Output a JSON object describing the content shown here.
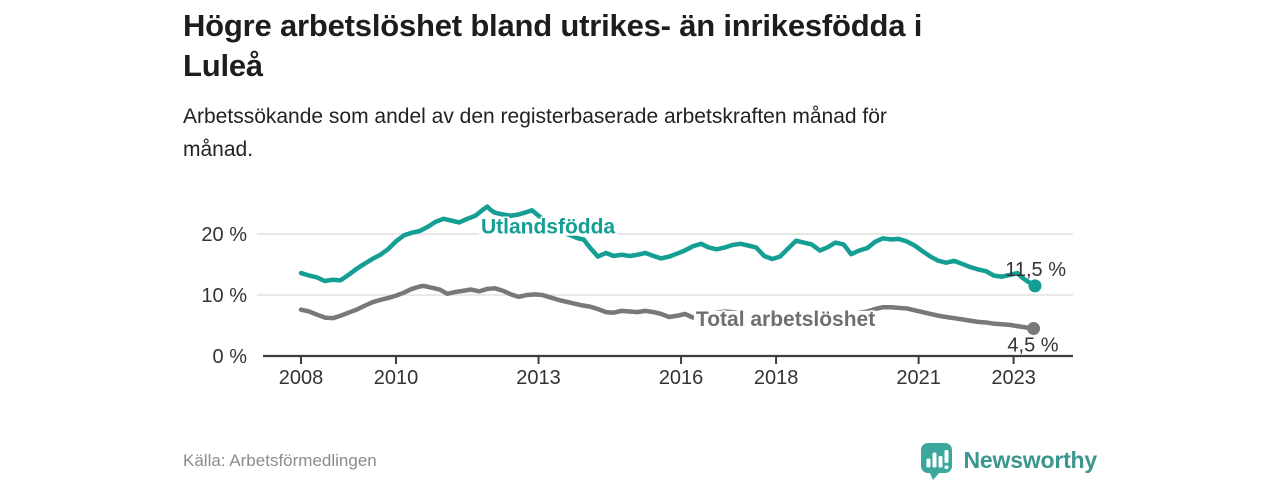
{
  "header": {
    "title_lines": [
      "Högre arbetslöshet bland utrikes- än inrikesfödda i",
      "Luleå"
    ],
    "subtitle_lines": [
      "Arbetssökande som andel av den registerbaserade arbetskraften månad för",
      "månad."
    ]
  },
  "footer": {
    "source": "Källa: Arbetsförmedlingen",
    "brand": "Newsworthy"
  },
  "colors": {
    "accent_teal": "#149E94",
    "line_gray": "#787878",
    "label_gray": "#6f6f6f",
    "grid": "#dcdcdc",
    "axis": "#3d3d3d",
    "axis_text": "#333333",
    "end_label_text": "#333333",
    "logo_teal": "#3BA79D",
    "logo_text": "#3A968E"
  },
  "chart_data": {
    "type": "line",
    "unit": "%",
    "xlim": [
      2007.2,
      2024.25
    ],
    "ylim": [
      0,
      25.5
    ],
    "grid": "horizontal",
    "y_ticks": [
      {
        "value": 0,
        "label": "0 %"
      },
      {
        "value": 10,
        "label": "10 %"
      },
      {
        "value": 20,
        "label": "20 %"
      }
    ],
    "x_ticks": [
      {
        "value": 2008,
        "label": "2008"
      },
      {
        "value": 2010,
        "label": "2010"
      },
      {
        "value": 2013,
        "label": "2013"
      },
      {
        "value": 2016,
        "label": "2016"
      },
      {
        "value": 2018,
        "label": "2018"
      },
      {
        "value": 2021,
        "label": "2021"
      },
      {
        "value": 2023,
        "label": "2023"
      }
    ],
    "series": [
      {
        "name": "Utlandsfödda",
        "color_key": "accent_teal",
        "label_color_key": "accent_teal",
        "label_at": {
          "x": 2013.2,
          "y": 21.2
        },
        "end_label": "11,5 %",
        "end_label_side": "above",
        "points": [
          [
            2008.0,
            13.6
          ],
          [
            2008.17,
            13.2
          ],
          [
            2008.33,
            12.9
          ],
          [
            2008.5,
            12.3
          ],
          [
            2008.67,
            12.5
          ],
          [
            2008.83,
            12.4
          ],
          [
            2009.0,
            13.3
          ],
          [
            2009.17,
            14.3
          ],
          [
            2009.33,
            15.1
          ],
          [
            2009.5,
            15.9
          ],
          [
            2009.67,
            16.6
          ],
          [
            2009.83,
            17.5
          ],
          [
            2010.0,
            18.8
          ],
          [
            2010.17,
            19.8
          ],
          [
            2010.33,
            20.2
          ],
          [
            2010.5,
            20.5
          ],
          [
            2010.67,
            21.2
          ],
          [
            2010.83,
            22.0
          ],
          [
            2011.0,
            22.5
          ],
          [
            2011.17,
            22.2
          ],
          [
            2011.33,
            21.9
          ],
          [
            2011.5,
            22.5
          ],
          [
            2011.67,
            23.0
          ],
          [
            2011.83,
            24.0
          ],
          [
            2011.92,
            24.5
          ],
          [
            2012.0,
            23.9
          ],
          [
            2012.08,
            23.5
          ],
          [
            2012.25,
            23.2
          ],
          [
            2012.42,
            23.0
          ],
          [
            2012.58,
            23.2
          ],
          [
            2012.75,
            23.6
          ],
          [
            2012.86,
            23.9
          ],
          [
            2013.0,
            23.0
          ],
          [
            2013.17,
            22.0
          ],
          [
            2013.33,
            21.0
          ],
          [
            2013.5,
            20.3
          ],
          [
            2013.67,
            19.8
          ],
          [
            2013.83,
            19.3
          ],
          [
            2013.95,
            19.1
          ],
          [
            2014.08,
            17.8
          ],
          [
            2014.25,
            16.3
          ],
          [
            2014.42,
            16.9
          ],
          [
            2014.58,
            16.4
          ],
          [
            2014.75,
            16.6
          ],
          [
            2014.92,
            16.4
          ],
          [
            2015.08,
            16.6
          ],
          [
            2015.25,
            16.9
          ],
          [
            2015.42,
            16.4
          ],
          [
            2015.58,
            16.0
          ],
          [
            2015.75,
            16.3
          ],
          [
            2015.92,
            16.8
          ],
          [
            2016.08,
            17.3
          ],
          [
            2016.25,
            18.0
          ],
          [
            2016.42,
            18.4
          ],
          [
            2016.58,
            17.8
          ],
          [
            2016.75,
            17.5
          ],
          [
            2016.92,
            17.8
          ],
          [
            2017.08,
            18.2
          ],
          [
            2017.25,
            18.4
          ],
          [
            2017.42,
            18.1
          ],
          [
            2017.58,
            17.8
          ],
          [
            2017.75,
            16.4
          ],
          [
            2017.92,
            15.9
          ],
          [
            2018.08,
            16.3
          ],
          [
            2018.25,
            17.6
          ],
          [
            2018.42,
            18.9
          ],
          [
            2018.58,
            18.6
          ],
          [
            2018.75,
            18.3
          ],
          [
            2018.92,
            17.3
          ],
          [
            2019.08,
            17.8
          ],
          [
            2019.25,
            18.6
          ],
          [
            2019.42,
            18.3
          ],
          [
            2019.58,
            16.7
          ],
          [
            2019.75,
            17.3
          ],
          [
            2019.92,
            17.7
          ],
          [
            2020.08,
            18.7
          ],
          [
            2020.25,
            19.3
          ],
          [
            2020.42,
            19.1
          ],
          [
            2020.58,
            19.2
          ],
          [
            2020.75,
            18.8
          ],
          [
            2020.92,
            18.1
          ],
          [
            2021.08,
            17.2
          ],
          [
            2021.25,
            16.3
          ],
          [
            2021.42,
            15.6
          ],
          [
            2021.58,
            15.3
          ],
          [
            2021.75,
            15.6
          ],
          [
            2021.92,
            15.1
          ],
          [
            2022.08,
            14.6
          ],
          [
            2022.25,
            14.2
          ],
          [
            2022.42,
            13.9
          ],
          [
            2022.58,
            13.2
          ],
          [
            2022.75,
            13.0
          ],
          [
            2022.92,
            13.3
          ],
          [
            2023.08,
            13.6
          ],
          [
            2023.17,
            12.9
          ],
          [
            2023.3,
            12.2
          ],
          [
            2023.42,
            11.7
          ],
          [
            2023.45,
            11.5
          ]
        ]
      },
      {
        "name": "Total arbetslöshet",
        "color_key": "line_gray",
        "label_color_key": "label_gray",
        "label_at": {
          "x": 2018.2,
          "y": 6.1
        },
        "end_label": "4,5 %",
        "end_label_side": "below",
        "points": [
          [
            2008.0,
            7.6
          ],
          [
            2008.17,
            7.3
          ],
          [
            2008.33,
            6.8
          ],
          [
            2008.5,
            6.3
          ],
          [
            2008.67,
            6.2
          ],
          [
            2008.83,
            6.6
          ],
          [
            2009.0,
            7.1
          ],
          [
            2009.17,
            7.6
          ],
          [
            2009.33,
            8.2
          ],
          [
            2009.5,
            8.8
          ],
          [
            2009.67,
            9.2
          ],
          [
            2009.83,
            9.5
          ],
          [
            2010.0,
            9.9
          ],
          [
            2010.17,
            10.4
          ],
          [
            2010.33,
            11.0
          ],
          [
            2010.5,
            11.4
          ],
          [
            2010.58,
            11.5
          ],
          [
            2010.75,
            11.2
          ],
          [
            2010.92,
            10.9
          ],
          [
            2011.08,
            10.2
          ],
          [
            2011.25,
            10.5
          ],
          [
            2011.42,
            10.7
          ],
          [
            2011.58,
            10.9
          ],
          [
            2011.75,
            10.6
          ],
          [
            2011.92,
            11.0
          ],
          [
            2012.08,
            11.1
          ],
          [
            2012.25,
            10.7
          ],
          [
            2012.42,
            10.1
          ],
          [
            2012.58,
            9.7
          ],
          [
            2012.75,
            10.0
          ],
          [
            2012.92,
            10.1
          ],
          [
            2013.08,
            10.0
          ],
          [
            2013.25,
            9.6
          ],
          [
            2013.42,
            9.2
          ],
          [
            2013.58,
            8.9
          ],
          [
            2013.75,
            8.6
          ],
          [
            2013.92,
            8.3
          ],
          [
            2014.08,
            8.1
          ],
          [
            2014.25,
            7.7
          ],
          [
            2014.42,
            7.2
          ],
          [
            2014.58,
            7.1
          ],
          [
            2014.75,
            7.4
          ],
          [
            2014.92,
            7.3
          ],
          [
            2015.08,
            7.2
          ],
          [
            2015.25,
            7.4
          ],
          [
            2015.42,
            7.2
          ],
          [
            2015.58,
            6.9
          ],
          [
            2015.75,
            6.4
          ],
          [
            2015.92,
            6.6
          ],
          [
            2016.08,
            6.9
          ],
          [
            2016.25,
            6.3
          ],
          [
            2016.42,
            6.5
          ],
          [
            2016.58,
            6.9
          ],
          [
            2016.75,
            7.1
          ],
          [
            2016.92,
            7.3
          ],
          [
            2017.08,
            7.2
          ],
          [
            2017.25,
            7.0
          ],
          [
            2017.42,
            6.8
          ],
          [
            2017.58,
            6.6
          ],
          [
            2017.75,
            6.4
          ],
          [
            2017.92,
            6.3
          ],
          [
            2018.08,
            6.4
          ],
          [
            2018.25,
            6.6
          ],
          [
            2018.42,
            6.9
          ],
          [
            2018.58,
            7.0
          ],
          [
            2018.75,
            6.9
          ],
          [
            2018.92,
            6.7
          ],
          [
            2019.08,
            6.5
          ],
          [
            2019.25,
            6.6
          ],
          [
            2019.42,
            6.8
          ],
          [
            2019.58,
            6.9
          ],
          [
            2019.75,
            7.1
          ],
          [
            2019.92,
            7.3
          ],
          [
            2020.08,
            7.7
          ],
          [
            2020.25,
            8.0
          ],
          [
            2020.42,
            8.0
          ],
          [
            2020.58,
            7.9
          ],
          [
            2020.75,
            7.8
          ],
          [
            2020.92,
            7.5
          ],
          [
            2021.08,
            7.2
          ],
          [
            2021.25,
            6.9
          ],
          [
            2021.42,
            6.6
          ],
          [
            2021.58,
            6.4
          ],
          [
            2021.75,
            6.2
          ],
          [
            2021.92,
            6.0
          ],
          [
            2022.08,
            5.8
          ],
          [
            2022.25,
            5.6
          ],
          [
            2022.42,
            5.5
          ],
          [
            2022.58,
            5.3
          ],
          [
            2022.75,
            5.2
          ],
          [
            2022.92,
            5.1
          ],
          [
            2023.08,
            4.9
          ],
          [
            2023.25,
            4.7
          ],
          [
            2023.42,
            4.5
          ]
        ]
      }
    ]
  }
}
